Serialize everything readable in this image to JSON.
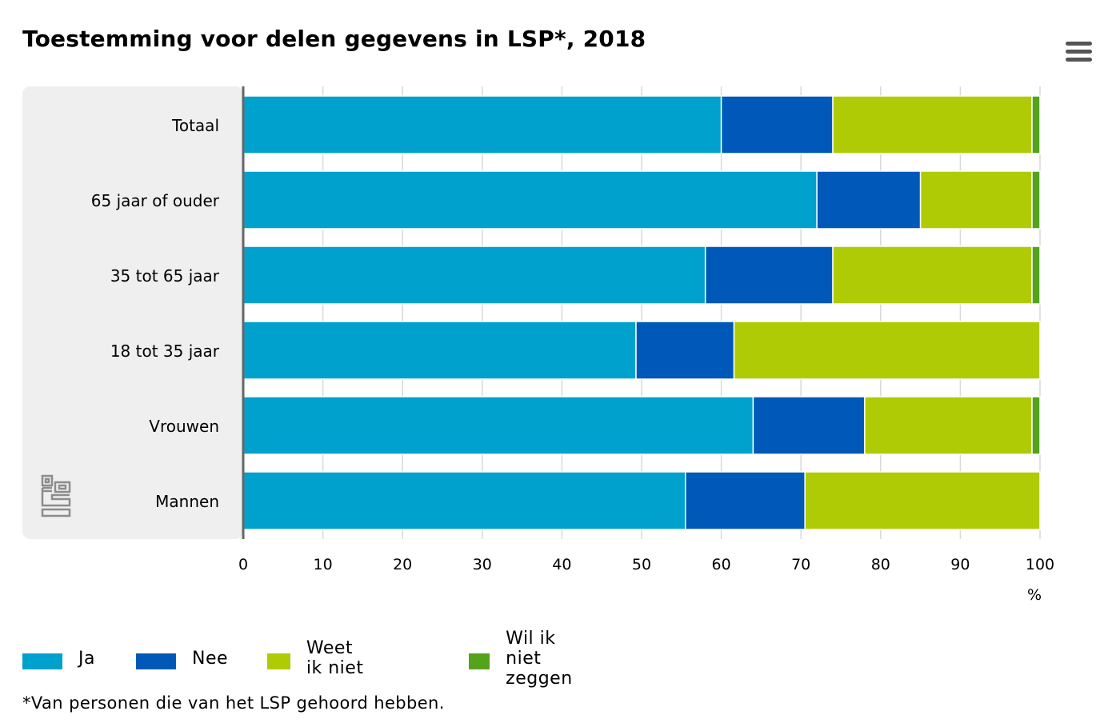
{
  "header": {
    "title": "Toestemming voor delen gegevens in LSP*, 2018",
    "menu_icon": "hamburger-menu-icon"
  },
  "chart_data": {
    "type": "bar",
    "orientation": "horizontal",
    "stacked": true,
    "title": "Toestemming voor delen gegevens in LSP*, 2018",
    "xlabel": "%",
    "ylabel": "",
    "xlim": [
      0,
      100
    ],
    "x_ticks": [
      "0",
      "10",
      "20",
      "30",
      "40",
      "50",
      "60",
      "70",
      "80",
      "90",
      "100"
    ],
    "grid": "vertical",
    "categories": [
      "Totaal",
      "65 jaar of ouder",
      "35 tot 65 jaar",
      "18 tot 35 jaar",
      "Vrouwen",
      "Mannen"
    ],
    "series": [
      {
        "name": "Ja",
        "color": "#00a1cd",
        "values": [
          60,
          72,
          58,
          49.3,
          64,
          55.5
        ]
      },
      {
        "name": "Nee",
        "color": "#0058b8",
        "values": [
          14,
          13,
          16,
          12.3,
          14,
          15
        ]
      },
      {
        "name": "Weet ik niet",
        "color": "#afcb05",
        "values": [
          25,
          14,
          25,
          38.4,
          21,
          29.5
        ]
      },
      {
        "name": "Wil ik niet zeggen",
        "color": "#53a31d",
        "values": [
          1,
          1,
          1,
          0,
          1,
          0
        ]
      }
    ],
    "legend_position": "bottom-left"
  },
  "footnote": "*Van personen die van het LSP gehoord hebben.",
  "logo_icon": "cbs-logo-icon"
}
